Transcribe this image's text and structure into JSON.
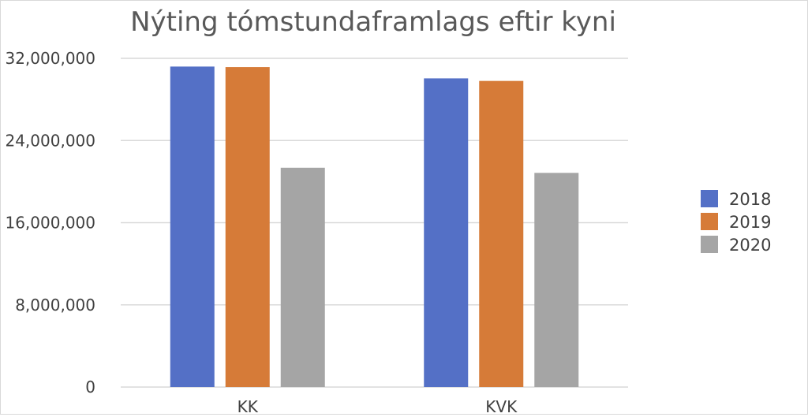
{
  "chart_data": {
    "type": "bar",
    "title": "Nýting tómstundaframlags eftir kyni",
    "xlabel": "",
    "ylabel": "",
    "categories": [
      "KK",
      "KVK"
    ],
    "series": [
      {
        "name": "2018",
        "values": [
          31200000,
          30050000
        ],
        "color": "#5470c6"
      },
      {
        "name": "2019",
        "values": [
          31150000,
          29800000
        ],
        "color": "#d67b38"
      },
      {
        "name": "2020",
        "values": [
          21350000,
          20850000
        ],
        "color": "#a5a5a5"
      }
    ],
    "ylim": [
      0,
      32000000
    ],
    "yticks": [
      0,
      8000000,
      16000000,
      24000000,
      32000000
    ],
    "ytick_labels": [
      "0",
      "8,000,000",
      "16,000,000",
      "24,000,000",
      "32,000,000"
    ],
    "grid": true,
    "legend_position": "right"
  }
}
